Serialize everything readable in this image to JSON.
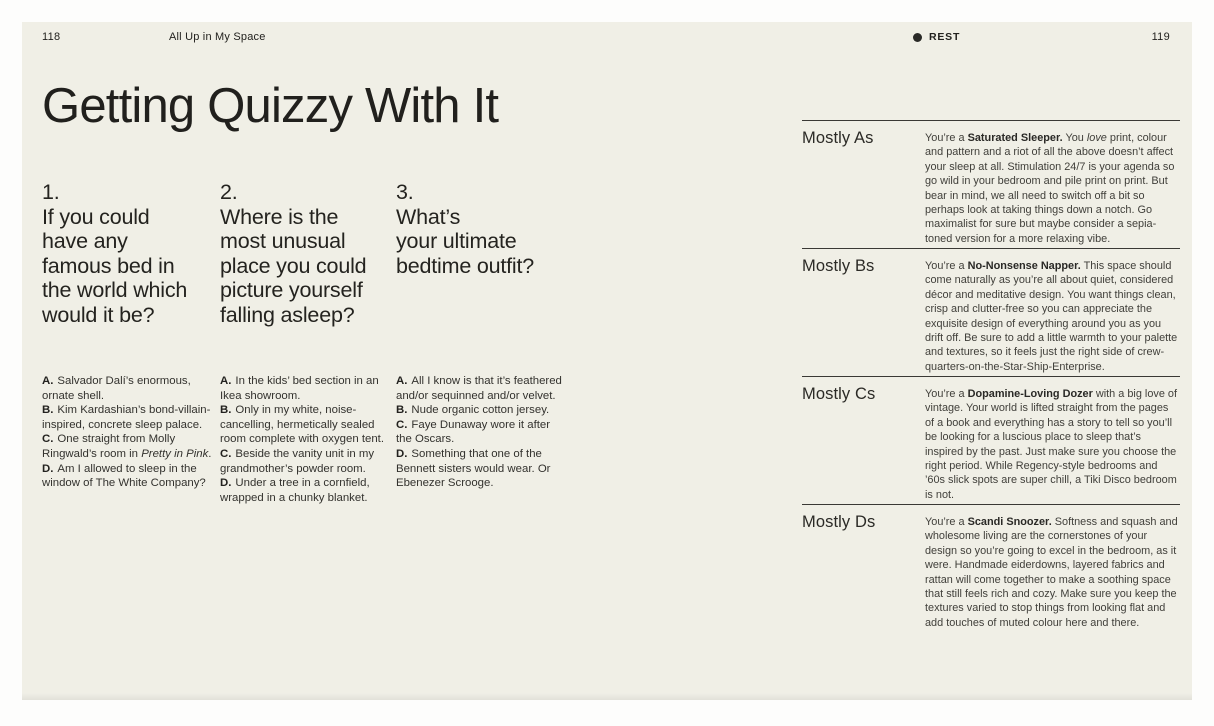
{
  "colors": {
    "page_background": "#f0efe6",
    "ink": "#22211e",
    "rule": "#3a3935"
  },
  "icons": {
    "section_bullet": "filled-circle"
  },
  "header": {
    "left_page_number": "118",
    "book_title": "All Up in My Space",
    "section_label": "REST",
    "right_page_number": "119"
  },
  "title": "Getting Quizzy With It",
  "questions": [
    {
      "number": "1.",
      "lines": [
        "If you could",
        "have any",
        "famous bed in",
        "the world which",
        "would it be?"
      ],
      "answers": [
        {
          "label": "A.",
          "pre": "Salvador Dalí’s enormous, ornate shell.",
          "italic": "",
          "post": ""
        },
        {
          "label": "B.",
          "pre": "Kim Kardashian’s bond-villain-inspired, concrete sleep palace.",
          "italic": "",
          "post": ""
        },
        {
          "label": "C.",
          "pre": "One straight from Molly Ringwald’s room in ",
          "italic": "Pretty in Pink",
          "post": "."
        },
        {
          "label": "D.",
          "pre": "Am I allowed to sleep in the window of The White Company?",
          "italic": "",
          "post": ""
        }
      ]
    },
    {
      "number": "2.",
      "lines": [
        "Where is the",
        "most unusual",
        "place you could",
        "picture yourself",
        "falling asleep?"
      ],
      "answers": [
        {
          "label": "A.",
          "pre": "In the kids’ bed section in an Ikea showroom.",
          "italic": "",
          "post": ""
        },
        {
          "label": "B.",
          "pre": "Only in my white, noise-cancelling, hermetically sealed room complete with oxygen tent.",
          "italic": "",
          "post": ""
        },
        {
          "label": "C.",
          "pre": "Beside the vanity unit in my grandmother’s powder room.",
          "italic": "",
          "post": ""
        },
        {
          "label": "D.",
          "pre": "Under a tree in a cornfield, wrapped in a chunky blanket.",
          "italic": "",
          "post": ""
        }
      ]
    },
    {
      "number": "3.",
      "lines": [
        "What’s",
        "your ultimate",
        "bedtime outfit?"
      ],
      "answers": [
        {
          "label": "A.",
          "pre": "All I know is that it’s feathered and/or sequinned and/or velvet.",
          "italic": "",
          "post": ""
        },
        {
          "label": "B.",
          "pre": "Nude organic cotton jersey.",
          "italic": "",
          "post": ""
        },
        {
          "label": "C.",
          "pre": "Faye Dunaway wore it after the Oscars.",
          "italic": "",
          "post": ""
        },
        {
          "label": "D.",
          "pre": "Something that one of the Bennett sisters would wear. Or Ebenezer Scrooge.",
          "italic": "",
          "post": ""
        }
      ]
    }
  ],
  "results": [
    {
      "label": "Mostly As",
      "pre": "You’re a ",
      "name": "Saturated Sleeper.",
      "mid": " You ",
      "italic": "love",
      "rest": " print, colour and pattern and a riot of all the above doesn’t affect your sleep at all. Stimulation 24/7 is your agenda so go wild in your bedroom and pile print on print. But bear in mind, we all need to switch off a bit so perhaps look at taking things down a notch. Go maximalist for sure but maybe consider a sepia-toned version for a more relaxing vibe."
    },
    {
      "label": "Mostly Bs",
      "pre": "You’re a ",
      "name": "No-Nonsense Napper.",
      "mid": " This space should come naturally as you’re all about quiet, considered décor and meditative design. You want things clean, crisp and clutter-free so you can appreciate the exquisite design of everything around you as you drift off. Be sure to add a little warmth to your palette and textures, so it feels just the right side of crew-quarters-on-the-Star-Ship-Enterprise.",
      "italic": "",
      "rest": ""
    },
    {
      "label": "Mostly Cs",
      "pre": "You’re a ",
      "name": "Dopamine-Loving Dozer",
      "mid": " with a big love of vintage. Your world is lifted straight from the pages of a book and everything has a story to tell so you’ll be looking for a luscious place to sleep that’s inspired by the past. Just make sure you choose the right period. While Regency-style bedrooms and ’60s slick spots are super chill, a Tiki Disco bedroom is not.",
      "italic": "",
      "rest": ""
    },
    {
      "label": "Mostly Ds",
      "pre": "You’re a ",
      "name": "Scandi Snoozer.",
      "mid": " Softness and squash and wholesome living are the cornerstones of your design so you’re going to excel in the bedroom, as it were. Handmade eiderdowns, layered fabrics and rattan will come together to make a soothing space that still feels rich and cozy. Make sure you keep the textures varied to stop things from looking flat and add touches of muted colour here and there.",
      "italic": "",
      "rest": ""
    }
  ]
}
